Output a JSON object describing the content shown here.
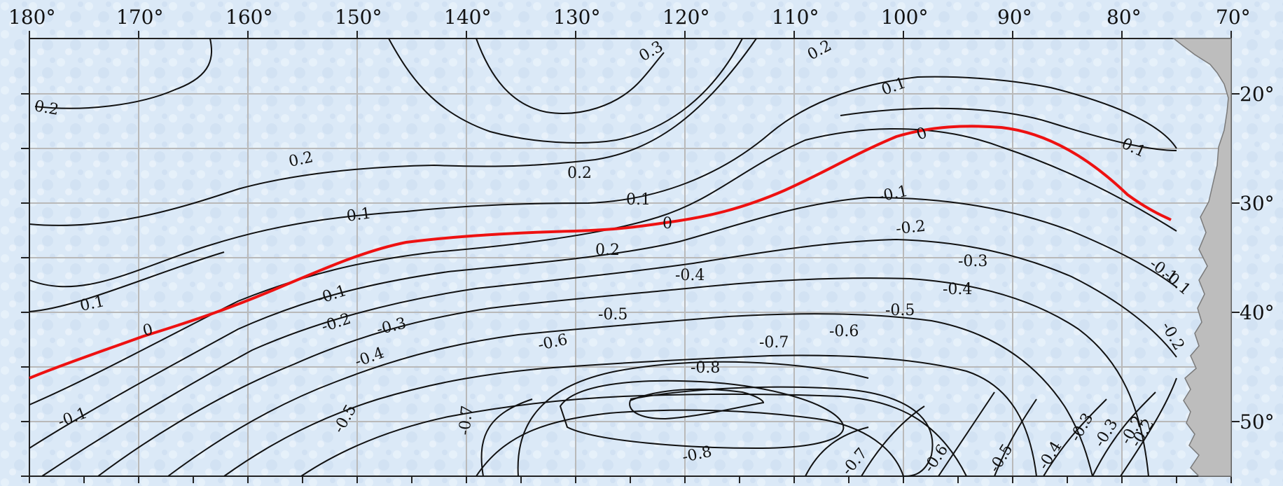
{
  "map": {
    "longitude_labels": [
      "180°",
      "170°",
      "160°",
      "150°",
      "140°",
      "130°",
      "120°",
      "110°",
      "100°",
      "90°",
      "80°",
      "70°"
    ],
    "latitude_labels": [
      "20°",
      "30°",
      "40°",
      "50°"
    ],
    "contour_labels": [
      "0.3",
      "0.2",
      "0.2",
      "0.1",
      "0.1",
      "0.2",
      "0.2",
      "0.1",
      "0.1",
      "0",
      "0.1",
      "-0.1",
      "0.2",
      "0",
      "-0.2",
      "-0.1",
      "0",
      "-0.3",
      "-0.1",
      "-0.2",
      "-0.4",
      "-0.3",
      "-0.4",
      "-0.5",
      "-0.1",
      "-0.5",
      "-0.2",
      "-0.6",
      "-0.3",
      "-0.6",
      "-0.7",
      "-0.4",
      "-0.8",
      "-0.2",
      "-0.1",
      "-0.5",
      "-0.7",
      "-0.8",
      "-0.7",
      "-0.6",
      "-0.5",
      "-0.4",
      "-0.3",
      "-0.2"
    ],
    "colors": {
      "background": "#dbe9f7",
      "grid": "#b9b9b9",
      "contour": "#111111",
      "zero_contour": "#ee1111",
      "land": "#bdbdbd"
    }
  }
}
